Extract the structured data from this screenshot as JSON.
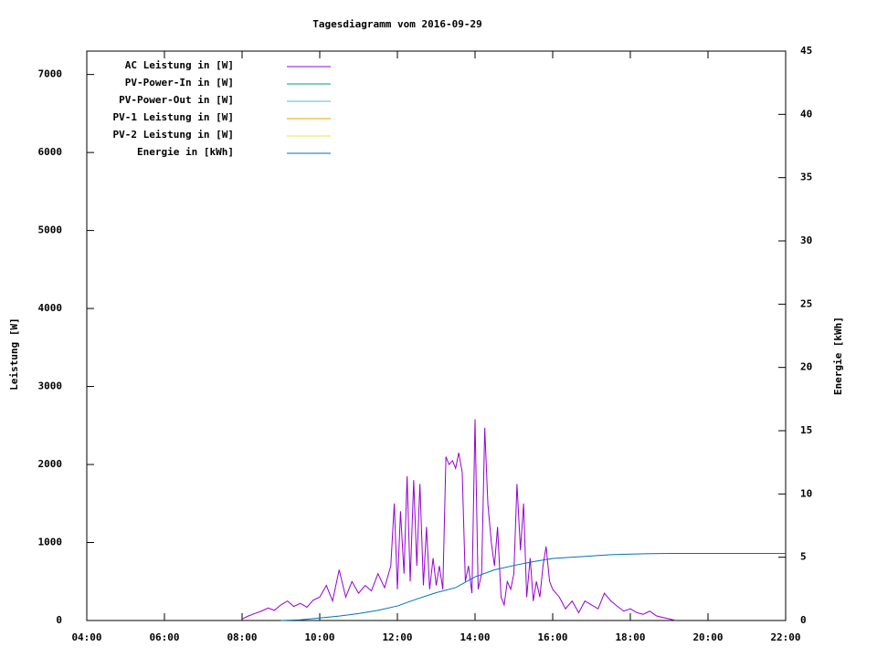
{
  "chart_data": {
    "type": "line",
    "title": "Tagesdiagramm vom 2016-09-29",
    "y_label": "Leistung [W]",
    "y2_label": "Energie [kWh]",
    "xlim": [
      4,
      22
    ],
    "xticks": [
      {
        "value": 4,
        "label": "04:00"
      },
      {
        "value": 6,
        "label": "06:00"
      },
      {
        "value": 8,
        "label": "08:00"
      },
      {
        "value": 10,
        "label": "10:00"
      },
      {
        "value": 12,
        "label": "12:00"
      },
      {
        "value": 14,
        "label": "14:00"
      },
      {
        "value": 16,
        "label": "16:00"
      },
      {
        "value": 18,
        "label": "18:00"
      },
      {
        "value": 20,
        "label": "20:00"
      },
      {
        "value": 22,
        "label": "22:00"
      }
    ],
    "ylim": [
      0,
      7300
    ],
    "yticks": [
      0,
      1000,
      2000,
      3000,
      4000,
      5000,
      6000,
      7000
    ],
    "y2lim": [
      0,
      45
    ],
    "y2ticks": [
      0,
      5,
      10,
      15,
      20,
      25,
      30,
      35,
      40,
      45
    ],
    "legend": "upper-left",
    "series": [
      {
        "name": "AC Leistung in [W]",
        "color": "#9400d3",
        "x": [
          8.0,
          8.17,
          8.33,
          8.5,
          8.67,
          8.83,
          9.0,
          9.17,
          9.33,
          9.5,
          9.67,
          9.83,
          10.0,
          10.17,
          10.33,
          10.5,
          10.67,
          10.83,
          11.0,
          11.17,
          11.33,
          11.5,
          11.67,
          11.83,
          11.92,
          12.0,
          12.08,
          12.17,
          12.25,
          12.33,
          12.42,
          12.5,
          12.58,
          12.67,
          12.75,
          12.83,
          12.92,
          13.0,
          13.08,
          13.17,
          13.25,
          13.33,
          13.42,
          13.5,
          13.58,
          13.67,
          13.75,
          13.83,
          13.92,
          14.0,
          14.08,
          14.17,
          14.25,
          14.33,
          14.42,
          14.5,
          14.58,
          14.67,
          14.75,
          14.83,
          14.92,
          15.0,
          15.08,
          15.17,
          15.25,
          15.33,
          15.42,
          15.5,
          15.58,
          15.67,
          15.75,
          15.83,
          15.92,
          16.0,
          16.17,
          16.33,
          16.5,
          16.67,
          16.83,
          17.0,
          17.17,
          17.33,
          17.5,
          17.67,
          17.83,
          18.0,
          18.17,
          18.33,
          18.5,
          18.67,
          18.83,
          19.0,
          19.17
        ],
        "values": [
          20,
          60,
          90,
          120,
          160,
          130,
          200,
          250,
          180,
          220,
          170,
          260,
          300,
          450,
          250,
          650,
          300,
          500,
          350,
          450,
          380,
          600,
          420,
          700,
          1500,
          400,
          1400,
          600,
          1850,
          500,
          1800,
          700,
          1750,
          450,
          1200,
          400,
          800,
          450,
          700,
          400,
          2100,
          2000,
          2050,
          1950,
          2150,
          1900,
          500,
          700,
          350,
          2580,
          400,
          600,
          2470,
          1500,
          1000,
          700,
          1200,
          300,
          200,
          500,
          400,
          600,
          1750,
          900,
          1500,
          300,
          800,
          250,
          500,
          300,
          700,
          950,
          500,
          400,
          300,
          150,
          250,
          100,
          250,
          200,
          150,
          350,
          250,
          180,
          120,
          150,
          100,
          80,
          120,
          60,
          40,
          20,
          0
        ]
      },
      {
        "name": "PV-Power-In in [W]",
        "color": "#009e73",
        "x": [],
        "values": []
      },
      {
        "name": "PV-Power-Out in [W]",
        "color": "#56b4e9",
        "x": [],
        "values": []
      },
      {
        "name": "PV-1 Leistung in [W]",
        "color": "#e69f00",
        "x": [],
        "values": []
      },
      {
        "name": "PV-2 Leistung in [W]",
        "color": "#f0e442",
        "x": [],
        "values": []
      },
      {
        "name": "Energie in [kWh]",
        "color": "#0072b2",
        "axis": "y2",
        "x": [
          9.0,
          9.5,
          10.0,
          10.5,
          11.0,
          11.5,
          12.0,
          12.5,
          13.0,
          13.5,
          14.0,
          14.5,
          15.0,
          15.5,
          16.0,
          16.5,
          17.0,
          17.5,
          18.0,
          18.5,
          19.0,
          20.0,
          21.0,
          22.0
        ],
        "values": [
          0,
          0.05,
          0.2,
          0.35,
          0.55,
          0.8,
          1.15,
          1.7,
          2.2,
          2.6,
          3.45,
          4.0,
          4.35,
          4.65,
          4.9,
          5.0,
          5.1,
          5.2,
          5.25,
          5.28,
          5.3,
          5.3,
          5.3,
          5.3
        ]
      }
    ]
  }
}
